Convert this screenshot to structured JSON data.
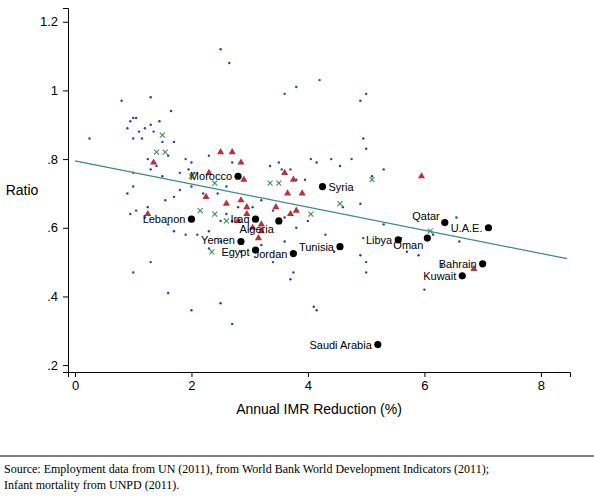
{
  "chart_data": {
    "type": "scatter",
    "x_label": "Annual IMR Reduction (%)",
    "y_label": "Ratio",
    "source": [
      "Source: Employment data from UN (2011), from World Bank World Development Indicators (2011);",
      "Infant mortality from UNPD (2011)."
    ],
    "xlim": [
      -0.12,
      8.5
    ],
    "ylim": [
      0.18,
      1.24
    ],
    "xticks": [
      0,
      2,
      4,
      6,
      8
    ],
    "yticks": [
      {
        "value": 0.2,
        "label": ".2"
      },
      {
        "value": 0.4,
        "label": ".4"
      },
      {
        "value": 0.6,
        "label": ".6"
      },
      {
        "value": 0.8,
        "label": ".8"
      },
      1,
      1.2
    ],
    "grid": false,
    "series": [
      {
        "type": "scatter",
        "marker": "circle",
        "color": "#1f3fbf",
        "x": [
          2.5,
          2.65,
          4.2,
          3.6,
          3.8,
          5.0,
          4.9,
          1.3,
          1.0,
          0.95,
          1.05,
          1.2,
          1.3,
          1.45,
          1.1,
          1.35,
          1.5,
          0.9,
          1.7,
          0.25,
          1.0,
          1.15,
          1.6,
          1.9,
          1.25,
          2.3,
          2.0,
          1.3,
          1.0,
          1.0,
          0.9,
          1.4,
          1.5,
          1.8,
          1.95,
          2.05,
          2.7,
          3.35,
          3.5,
          3.55,
          3.7,
          4.05,
          4.15,
          4.4,
          4.55,
          4.75,
          4.95,
          5.0,
          3.8,
          3.95,
          4.6,
          4.9,
          5.1,
          5.3,
          2.6,
          2.45,
          2.2,
          2.0,
          1.8,
          1.7,
          1.55,
          1.05,
          0.95,
          1.2,
          1.25,
          1.6,
          1.7,
          1.9,
          2.1,
          2.3,
          2.5,
          2.6,
          2.7,
          2.8,
          3.05,
          3.2,
          3.4,
          3.6,
          3.8,
          4.0,
          4.3,
          3.2,
          2.85,
          2.5,
          2.3,
          3.6,
          3.4,
          3.75,
          3.7,
          4.95,
          5.3,
          5.6,
          5.9,
          6.15,
          6.55,
          6.6,
          6.3,
          6.0,
          1.3,
          1.0,
          1.6,
          2.0,
          2.5,
          2.7,
          4.1,
          4.15,
          5.0,
          5.7,
          5.0,
          0.8,
          1.65,
          4.45,
          4.9
        ],
        "values": [
          1.12,
          1.08,
          1.03,
          0.99,
          1.01,
          0.99,
          0.97,
          0.98,
          0.92,
          0.91,
          0.92,
          0.89,
          0.9,
          0.91,
          0.88,
          0.88,
          0.85,
          0.89,
          0.85,
          0.86,
          0.86,
          0.86,
          0.81,
          0.8,
          0.8,
          0.81,
          0.79,
          0.77,
          0.76,
          0.72,
          0.7,
          0.78,
          0.75,
          0.76,
          0.77,
          0.76,
          0.79,
          0.78,
          0.79,
          0.77,
          0.77,
          0.8,
          0.79,
          0.8,
          0.78,
          0.8,
          0.86,
          0.83,
          0.74,
          0.74,
          0.66,
          0.67,
          0.75,
          0.77,
          0.72,
          0.7,
          0.7,
          0.72,
          0.71,
          0.69,
          0.68,
          0.65,
          0.64,
          0.63,
          0.66,
          0.61,
          0.59,
          0.58,
          0.58,
          0.59,
          0.62,
          0.64,
          0.62,
          0.66,
          0.66,
          0.68,
          0.65,
          0.63,
          0.6,
          0.62,
          0.58,
          0.55,
          0.53,
          0.56,
          0.54,
          0.56,
          0.5,
          0.47,
          0.45,
          0.57,
          0.61,
          0.57,
          0.52,
          0.58,
          0.63,
          0.56,
          0.49,
          0.42,
          0.5,
          0.47,
          0.41,
          0.36,
          0.38,
          0.32,
          0.37,
          0.36,
          0.5,
          0.53,
          0.47,
          0.97,
          0.94,
          0.53,
          0.52
        ]
      },
      {
        "type": "scatter",
        "marker": "x",
        "color": "#3f8f4f",
        "x": [
          1.4,
          1.55,
          1.5,
          2.4,
          2.15,
          2.4,
          2.6,
          3.5,
          3.35,
          4.05,
          5.1,
          2.35,
          4.55,
          2.0,
          6.1
        ],
        "values": [
          0.82,
          0.82,
          0.87,
          0.73,
          0.65,
          0.64,
          0.62,
          0.73,
          0.73,
          0.64,
          0.74,
          0.53,
          0.67,
          0.75,
          0.59
        ]
      },
      {
        "type": "scatter",
        "marker": "triangle",
        "color": "#b8323a",
        "x": [
          1.35,
          1.25,
          2.5,
          2.7,
          2.3,
          2.85,
          2.9,
          2.25,
          2.6,
          2.85,
          2.95,
          2.8,
          2.95,
          3.05,
          3.2,
          3.2,
          3.6,
          3.65,
          3.75,
          3.45,
          3.8,
          3.7,
          5.95,
          6.85,
          3.9,
          3.15
        ],
        "values": [
          0.79,
          0.64,
          0.82,
          0.82,
          0.76,
          0.79,
          0.74,
          0.69,
          0.67,
          0.68,
          0.66,
          0.62,
          0.64,
          0.6,
          0.59,
          0.61,
          0.76,
          0.7,
          0.74,
          0.66,
          0.65,
          0.64,
          0.75,
          0.48,
          0.7,
          0.57
        ]
      },
      {
        "type": "scatter",
        "marker": "circle",
        "color": "#000000",
        "x": [
          2.8,
          2.0,
          3.1,
          3.5,
          4.25,
          2.85,
          3.1,
          3.75,
          4.55,
          5.55,
          6.05,
          6.35,
          7.1,
          6.65,
          7.0,
          5.2
        ],
        "values": [
          0.75,
          0.625,
          0.625,
          0.62,
          0.72,
          0.56,
          0.535,
          0.525,
          0.545,
          0.565,
          0.57,
          0.615,
          0.6,
          0.46,
          0.495,
          0.26
        ],
        "labels": [
          "Morocco",
          "Lebanon",
          "Iraq",
          "Algeria",
          "Syria",
          "Yemen",
          "Egypt",
          "Jordan",
          "Tunisia",
          "Libya",
          "Oman",
          "Qatar",
          "U.A.E.",
          "Kuwait",
          "Bahrain",
          "Saudi Arabia"
        ]
      },
      {
        "type": "line",
        "line_style": "solid",
        "color": "#3a8a8a",
        "x": [
          0,
          8.45
        ],
        "values": [
          0.795,
          0.51
        ]
      }
    ]
  }
}
